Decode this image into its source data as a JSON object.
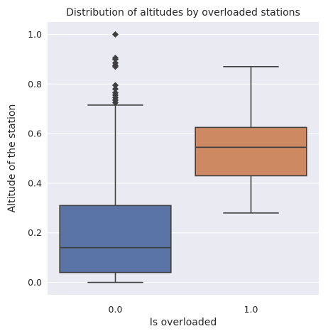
{
  "chart_data": {
    "type": "box",
    "title": "Distribution of altitudes by overloaded stations",
    "xlabel": "Is overloaded",
    "ylabel": "Altitude of the station",
    "categories": [
      "0.0",
      "1.0"
    ],
    "ylim": [
      -0.05,
      1.05
    ],
    "yticks": [
      0.0,
      0.2,
      0.4,
      0.6,
      0.8,
      1.0
    ],
    "ytick_labels": [
      "0.0",
      "0.2",
      "0.4",
      "0.6",
      "0.8",
      "1.0"
    ],
    "grid": true,
    "background": "#eaeaf2",
    "boxes": [
      {
        "category": "0.0",
        "color": "#5a74a8",
        "whisker_low": 0.0,
        "q1": 0.04,
        "median": 0.14,
        "q3": 0.31,
        "whisker_high": 0.715,
        "outliers": [
          0.725,
          0.735,
          0.745,
          0.755,
          0.765,
          0.78,
          0.795,
          0.87,
          0.875,
          0.885,
          0.9,
          0.905,
          1.0
        ]
      },
      {
        "category": "1.0",
        "color": "#cd8a62",
        "whisker_low": 0.28,
        "q1": 0.43,
        "median": 0.545,
        "q3": 0.625,
        "whisker_high": 0.87,
        "outliers": []
      }
    ]
  }
}
